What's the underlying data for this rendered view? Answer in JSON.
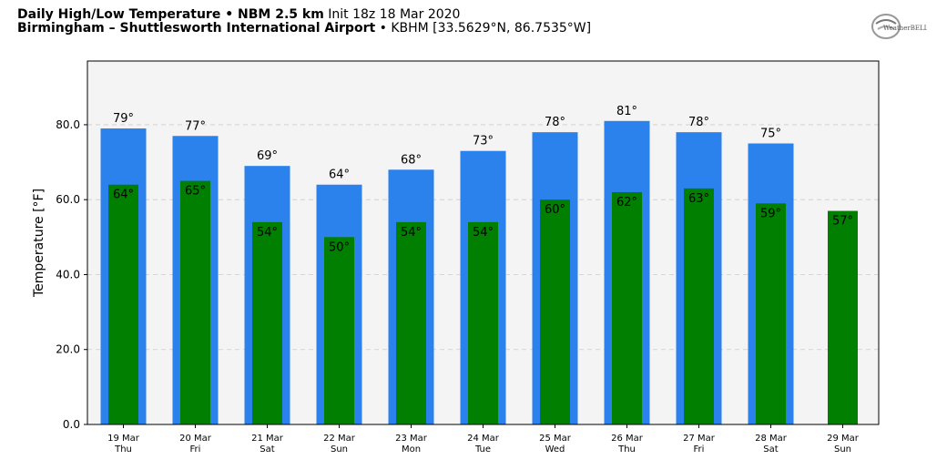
{
  "header": {
    "title_bold": "Daily High/Low Temperature • NBM 2.5 km",
    "title_init": "Init 18z 18 Mar 2020",
    "location_bold": "Birmingham – Shuttlesworth International Airport",
    "location_rest": "• KBHM [33.5629°N, 86.7535°W]"
  },
  "logo": {
    "text": "WeatherBELL",
    "icon": "weatherbell-logo"
  },
  "colors": {
    "high_bar": "#2b82ed",
    "low_bar": "#007f00",
    "plot_bg": "#f4f4f4",
    "grid": "#cccccc"
  },
  "chart_data": {
    "type": "bar",
    "ylabel": "Temperature [°F]",
    "ylim": [
      0,
      97
    ],
    "yticks": [
      "0.0",
      "20.0",
      "40.0",
      "60.0",
      "80.0"
    ],
    "ytick_values": [
      0,
      20,
      40,
      60,
      80
    ],
    "grid": "horizontal dashed",
    "categories": [
      {
        "date": "19 Mar",
        "day": "Thu"
      },
      {
        "date": "20 Mar",
        "day": "Fri"
      },
      {
        "date": "21 Mar",
        "day": "Sat"
      },
      {
        "date": "22 Mar",
        "day": "Sun"
      },
      {
        "date": "23 Mar",
        "day": "Mon"
      },
      {
        "date": "24 Mar",
        "day": "Tue"
      },
      {
        "date": "25 Mar",
        "day": "Wed"
      },
      {
        "date": "26 Mar",
        "day": "Thu"
      },
      {
        "date": "27 Mar",
        "day": "Fri"
      },
      {
        "date": "28 Mar",
        "day": "Sat"
      },
      {
        "date": "29 Mar",
        "day": "Sun"
      }
    ],
    "series": [
      {
        "values": [
          79,
          77,
          69,
          64,
          68,
          73,
          78,
          81,
          78,
          75,
          null
        ]
      },
      {
        "values": [
          64,
          65,
          54,
          50,
          54,
          54,
          60,
          62,
          63,
          59,
          57
        ]
      }
    ],
    "high_labels": [
      "79°",
      "77°",
      "69°",
      "64°",
      "68°",
      "73°",
      "78°",
      "81°",
      "78°",
      "75°",
      ""
    ],
    "low_labels": [
      "64°",
      "65°",
      "54°",
      "50°",
      "54°",
      "54°",
      "60°",
      "62°",
      "63°",
      "59°",
      "57°"
    ]
  }
}
